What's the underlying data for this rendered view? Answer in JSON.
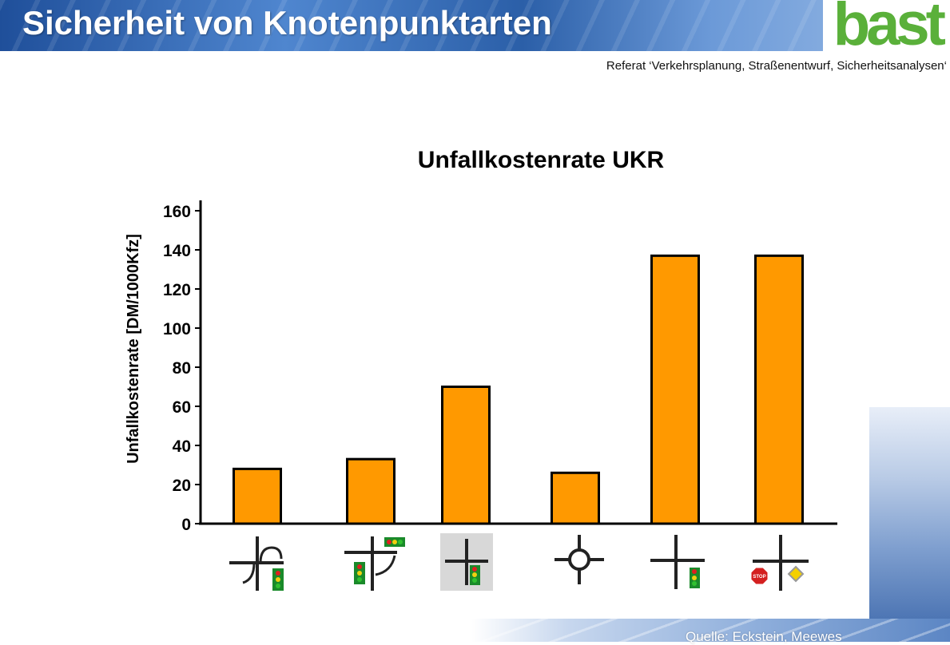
{
  "header": {
    "title": "Sicherheit von Knotenpunktarten",
    "logo": "bast",
    "subtitle": "Referat ‘Verkehrsplanung, Straßenentwurf, Sicherheitsanalysen‘"
  },
  "footer": {
    "source": "Quelle: Eckstein, Meewes"
  },
  "colors": {
    "bar_fill": "#ff9900",
    "bar_stroke": "#000000",
    "header_blue": "#2b5fa8",
    "logo_green": "#5ab03a"
  },
  "chart_data": {
    "type": "bar",
    "title": "Unfallkostenrate UKR",
    "ylabel": "Unfallkostenrate [DM/1000Kfz]",
    "xlabel": "",
    "ylim": [
      0,
      160
    ],
    "yticks": [
      0,
      20,
      40,
      60,
      80,
      100,
      120,
      140,
      160
    ],
    "grid": false,
    "legend": "none",
    "categories": [
      "grade-separated-with-signal-icon",
      "signalized-t-junction-with-turn-lane-icon",
      "signalized-crossroad-icon",
      "roundabout-icon",
      "crossroad-with-signal-icon",
      "crossroad-stop-and-priority-road-icon"
    ],
    "values": [
      28,
      33,
      70,
      26,
      137,
      137
    ]
  }
}
